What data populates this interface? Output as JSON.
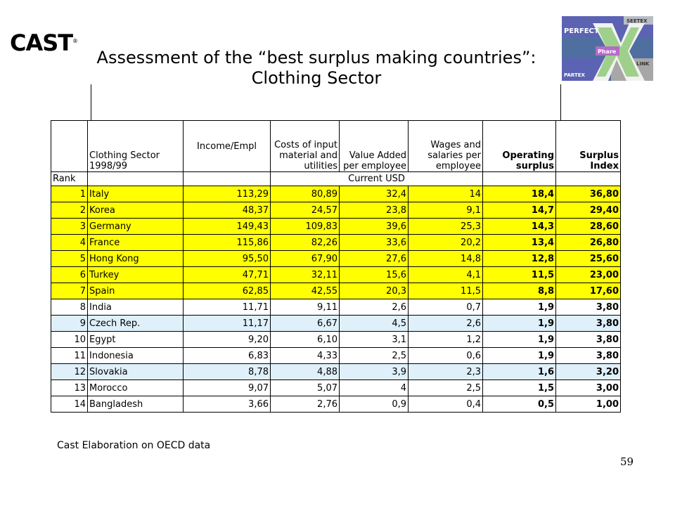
{
  "logo_left": {
    "text": "CAST",
    "tm": "®"
  },
  "logo_right": {
    "top": "SEETEX",
    "left": "PERFECT",
    "center": "Phare",
    "bottom_left": "PARTEX",
    "bottom_right": "LINK"
  },
  "title": {
    "line1": "Assessment of the “best surplus making countries”:",
    "line2": "Clothing  Sector"
  },
  "table": {
    "headers": {
      "rank": "",
      "sector": "Clothing Sector 1998/99",
      "income": "Income/Empl",
      "costs": "Costs of input material and utilities",
      "value_added": "Value Added per employee",
      "wages": "Wages and salaries per employee",
      "operating": "Operating surplus",
      "surplus": "Surplus Index"
    },
    "rank_label": "Rank",
    "units": "Current USD",
    "rows": [
      {
        "rank": "1",
        "country": "Italy",
        "income": "113,29",
        "costs": "80,89",
        "va": "32,4",
        "wages": "14",
        "op": "18,4",
        "si": "36,80",
        "color": "yellow"
      },
      {
        "rank": "2",
        "country": "Korea",
        "income": "48,37",
        "costs": "24,57",
        "va": "23,8",
        "wages": "9,1",
        "op": "14,7",
        "si": "29,40",
        "color": "yellow"
      },
      {
        "rank": "3",
        "country": "Germany",
        "income": "149,43",
        "costs": "109,83",
        "va": "39,6",
        "wages": "25,3",
        "op": "14,3",
        "si": "28,60",
        "color": "yellow"
      },
      {
        "rank": "4",
        "country": "France",
        "income": "115,86",
        "costs": "82,26",
        "va": "33,6",
        "wages": "20,2",
        "op": "13,4",
        "si": "26,80",
        "color": "yellow"
      },
      {
        "rank": "5",
        "country": "Hong Kong",
        "income": "95,50",
        "costs": "67,90",
        "va": "27,6",
        "wages": "14,8",
        "op": "12,8",
        "si": "25,60",
        "color": "yellow"
      },
      {
        "rank": "6",
        "country": "Turkey",
        "income": "47,71",
        "costs": "32,11",
        "va": "15,6",
        "wages": "4,1",
        "op": "11,5",
        "si": "23,00",
        "color": "yellow"
      },
      {
        "rank": "7",
        "country": "Spain",
        "income": "62,85",
        "costs": "42,55",
        "va": "20,3",
        "wages": "11,5",
        "op": "8,8",
        "si": "17,60",
        "color": "yellow"
      },
      {
        "rank": "8",
        "country": "India",
        "income": "11,71",
        "costs": "9,11",
        "va": "2,6",
        "wages": "0,7",
        "op": "1,9",
        "si": "3,80",
        "color": "white"
      },
      {
        "rank": "9",
        "country": "Czech Rep.",
        "income": "11,17",
        "costs": "6,67",
        "va": "4,5",
        "wages": "2,6",
        "op": "1,9",
        "si": "3,80",
        "color": "blue"
      },
      {
        "rank": "10",
        "country": "Egypt",
        "income": "9,20",
        "costs": "6,10",
        "va": "3,1",
        "wages": "1,2",
        "op": "1,9",
        "si": "3,80",
        "color": "white"
      },
      {
        "rank": "11",
        "country": "Indonesia",
        "income": "6,83",
        "costs": "4,33",
        "va": "2,5",
        "wages": "0,6",
        "op": "1,9",
        "si": "3,80",
        "color": "white"
      },
      {
        "rank": "12",
        "country": "Slovakia",
        "income": "8,78",
        "costs": "4,88",
        "va": "3,9",
        "wages": "2,3",
        "op": "1,6",
        "si": "3,20",
        "color": "blue"
      },
      {
        "rank": "13",
        "country": "Morocco",
        "income": "9,07",
        "costs": "5,07",
        "va": "4",
        "wages": "2,5",
        "op": "1,5",
        "si": "3,00",
        "color": "white"
      },
      {
        "rank": "14",
        "country": "Bangladesh",
        "income": "3,66",
        "costs": "2,76",
        "va": "0,9",
        "wages": "0,4",
        "op": "0,5",
        "si": "1,00",
        "color": "white"
      }
    ]
  },
  "note": "Cast Elaboration on OECD data",
  "page_number": "59"
}
